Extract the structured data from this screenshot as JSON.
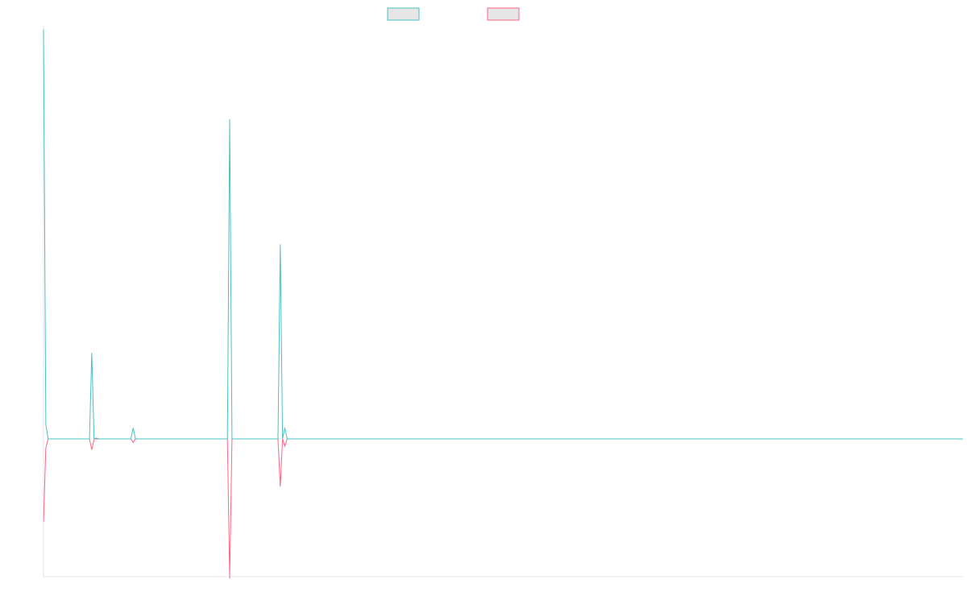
{
  "chart_data": {
    "type": "line",
    "title": "",
    "xlabel": "",
    "ylabel": "",
    "grid": false,
    "legend_position": "top-center",
    "xlim": [
      0,
      200
    ],
    "ylim": [
      -1,
      2
    ],
    "series": [
      {
        "color": "#4bc0c0",
        "legend_fill": "#e6e6e6",
        "x": [
          0,
          0.5,
          1,
          10,
          10.5,
          11,
          11.5,
          12,
          19,
          19.5,
          20,
          40,
          40.5,
          41,
          51,
          51.5,
          52,
          52.5,
          53,
          200
        ],
        "y": [
          2.23,
          0.08,
          0,
          0,
          0.47,
          0,
          0.005,
          0,
          0,
          0.06,
          0,
          0,
          1.74,
          0,
          0,
          1.06,
          0,
          0.06,
          0,
          0
        ]
      },
      {
        "color": "#ff6384",
        "legend_fill": "#e6e6e6",
        "x": [
          0,
          0.5,
          1,
          10,
          10.5,
          11,
          19,
          19.5,
          20,
          40,
          40.5,
          41,
          51,
          51.5,
          52,
          52.5,
          53,
          200
        ],
        "y": [
          -0.45,
          -0.05,
          0,
          0,
          -0.06,
          0,
          0,
          -0.02,
          0,
          0,
          -0.76,
          0,
          0,
          -0.26,
          0,
          -0.04,
          0,
          0
        ]
      }
    ]
  }
}
